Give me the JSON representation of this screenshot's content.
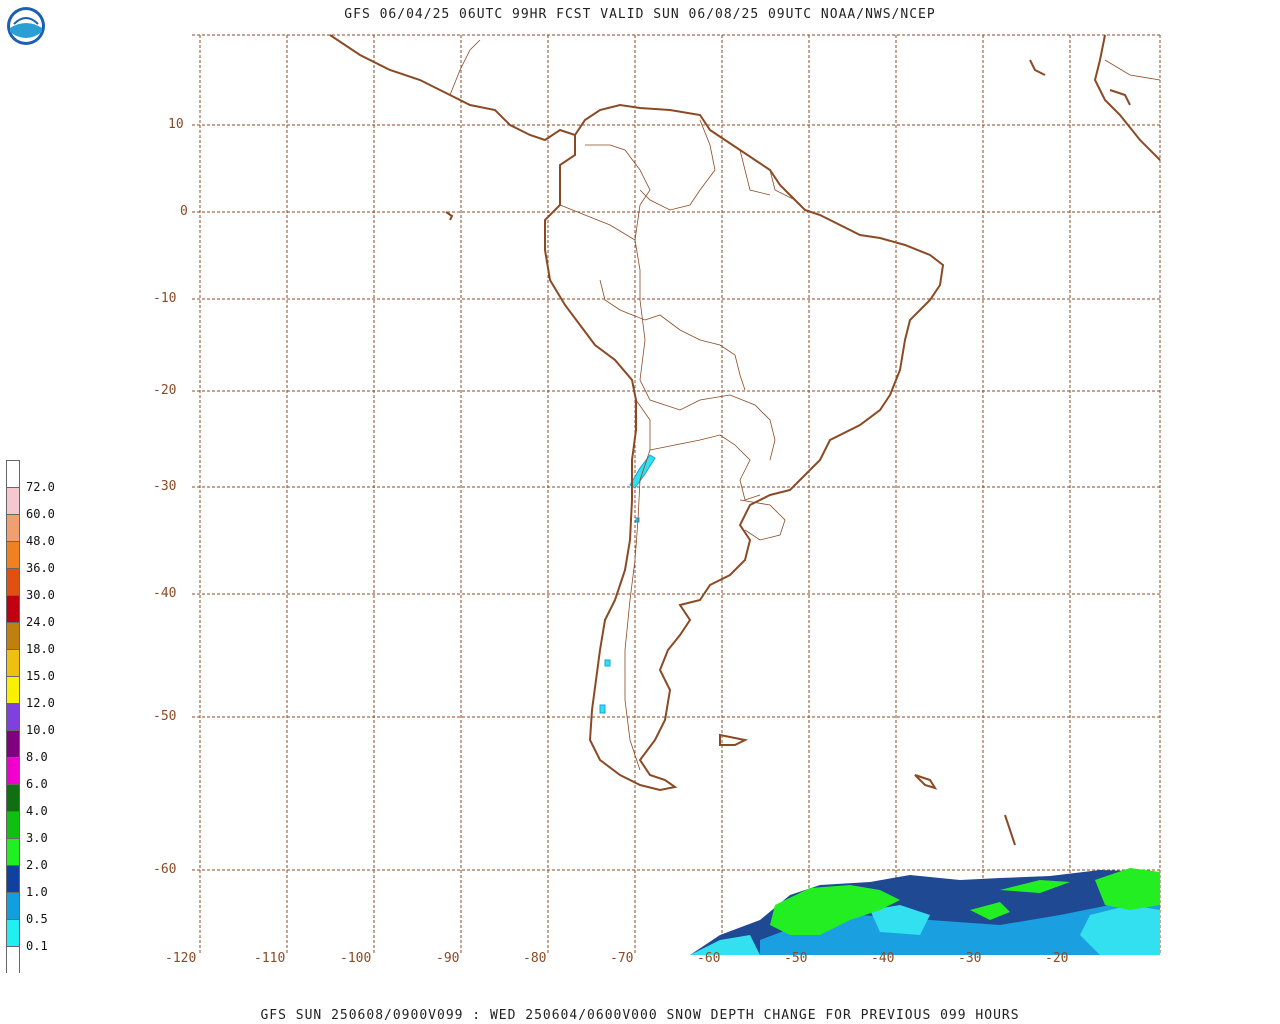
{
  "title": "GFS 06/04/25 06UTC 99HR FCST VALID SUN 06/08/25 09UTC NOAA/NWS/NCEP",
  "footer": "GFS SUN 250608/0900V099 : WED 250604/0600V000 SNOW DEPTH CHANGE FOR PREVIOUS 099 HOURS",
  "logo_text": "NOAA",
  "latitude_labels": [
    "10",
    "0",
    "-10",
    "-20",
    "-30",
    "-40",
    "-50",
    "-60"
  ],
  "longitude_labels": [
    "-120",
    "-110",
    "-100",
    "-90",
    "-80",
    "-70",
    "-60",
    "-50",
    "-40",
    "-30",
    "-20"
  ],
  "colorbar": {
    "labels": [
      "72.0",
      "60.0",
      "48.0",
      "36.0",
      "30.0",
      "24.0",
      "18.0",
      "15.0",
      "12.0",
      "10.0",
      "8.0",
      "6.0",
      "4.0",
      "3.0",
      "2.0",
      "1.0",
      "0.5",
      "0.1"
    ],
    "colors": [
      "#ffffff",
      "#f5c8d0",
      "#f0a070",
      "#f08020",
      "#e05010",
      "#c00010",
      "#c08010",
      "#f0c010",
      "#f8f000",
      "#8040e0",
      "#800080",
      "#f000d0",
      "#107010",
      "#10c010",
      "#20f020",
      "#1040a0",
      "#10a0e0",
      "#20f0f0",
      "#ffffff"
    ]
  },
  "colors": {
    "coastline": "#8b4a24",
    "borders": "#8b4a24",
    "grid": "#8b4a24"
  }
}
